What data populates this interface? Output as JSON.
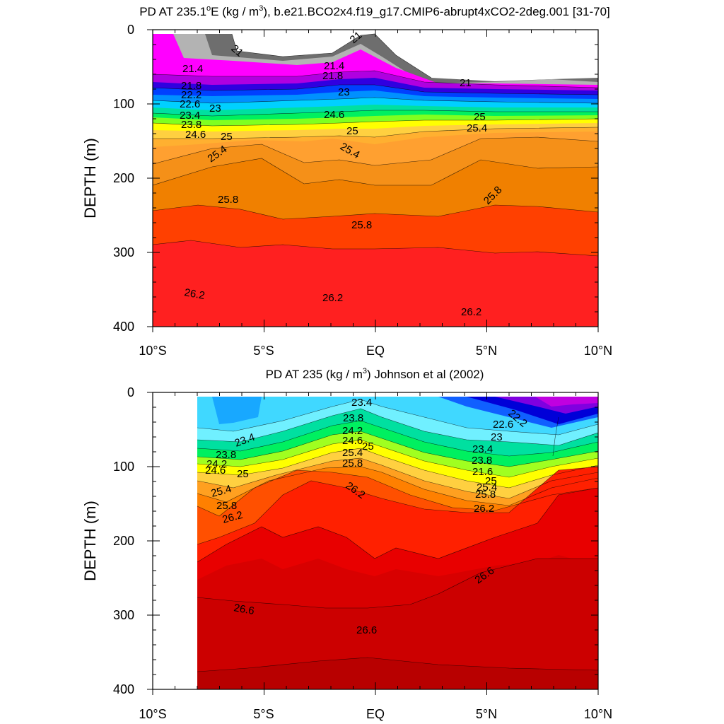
{
  "chart_data": [
    {
      "type": "contour",
      "title_main": "PD AT 235.1",
      "title_units": "E (kg / m",
      "title_sup": "3",
      "title_rest": "), b.e21.BCO2x4.f19_g17.CMIP6-abrupt4xCO2-2deg.001 [31-70]",
      "ylabel": "DEPTH (m)",
      "ylim": [
        400,
        0
      ],
      "xlim": [
        -10,
        10
      ],
      "x_ticks": [
        "10°S",
        "5°S",
        "EQ",
        "5°N",
        "10°N"
      ],
      "y_ticks": [
        "0",
        "100",
        "200",
        "300",
        "400"
      ],
      "lon": 235.1,
      "contour_labels": [
        "21",
        "21",
        "21.4",
        "21.4",
        "21.8",
        "21.8",
        "22.2",
        "22.6",
        "23",
        "23",
        "23.4",
        "23.8",
        "24.6",
        "24.6",
        "25",
        "25",
        "25.4",
        "25.4",
        "25.4",
        "25.8",
        "25.8",
        "25.8",
        "26.2",
        "26.2",
        "26.2",
        "21",
        "25"
      ],
      "colors": [
        "#7f7f7f",
        "#b0b0b0",
        "#ff00ff",
        "#0000cc",
        "#00a0ff",
        "#00ff80",
        "#ffff00",
        "#ffa030",
        "#f08000",
        "#ff4000",
        "#ff2020"
      ]
    },
    {
      "type": "contour",
      "title_main": "PD AT 235 (kg / m",
      "title_sup": "3",
      "title_rest": ") Johnson et al (2002)",
      "ylabel": "DEPTH (m)",
      "ylim": [
        400,
        0
      ],
      "xlim": [
        -10,
        10
      ],
      "x_ticks": [
        "10°S",
        "5°S",
        "EQ",
        "5°N",
        "10°N"
      ],
      "y_ticks": [
        "0",
        "100",
        "200",
        "300",
        "400"
      ],
      "lon": 235,
      "contour_labels": [
        "23.4",
        "23.4",
        "23.8",
        "23.8",
        "23.8",
        "24.2",
        "24.2",
        "24.6",
        "24.6",
        "25",
        "25",
        "25.4",
        "25.4",
        "25.8",
        "25.8",
        "26.2",
        "26.2",
        "26.2",
        "26.6",
        "26.6",
        "26.6",
        "22.6",
        "23",
        "23.4",
        "22.2",
        "21.6",
        "25",
        "25.4",
        "25.8"
      ],
      "colors": [
        "#00b8ff",
        "#40e0ff",
        "#0000dd",
        "#a000e0",
        "#ffff00",
        "#ff8000",
        "#ff2000",
        "#dd0000",
        "#c00000"
      ]
    }
  ]
}
